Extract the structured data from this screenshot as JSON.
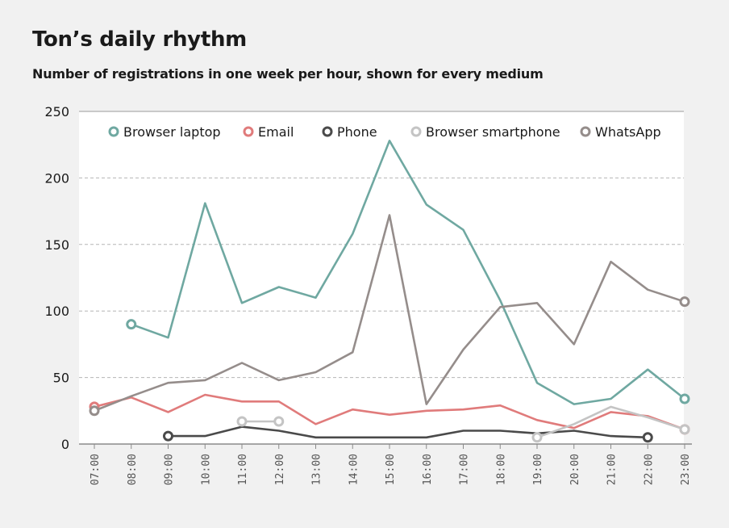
{
  "title": "Ton’s daily rhythm",
  "subtitle": "Number of registrations in one week per hour, shown for every medium",
  "chart_data": {
    "type": "line",
    "x": [
      "07:00",
      "08:00",
      "09:00",
      "10:00",
      "11:00",
      "12:00",
      "13:00",
      "14:00",
      "15:00",
      "16:00",
      "17:00",
      "18:00",
      "19:00",
      "20:00",
      "21:00",
      "22:00",
      "23:00"
    ],
    "ylim": [
      0,
      250
    ],
    "yticks": [
      0,
      50,
      100,
      150,
      200,
      250
    ],
    "grid": true,
    "legend_position": "top",
    "series": [
      {
        "name": "Browser laptop",
        "color": "#6fa8a1",
        "values": [
          null,
          90,
          80,
          181,
          106,
          118,
          110,
          158,
          228,
          180,
          161,
          108,
          46,
          30,
          34,
          56,
          34
        ]
      },
      {
        "name": "Email",
        "color": "#e07b7b",
        "values": [
          28,
          35,
          24,
          37,
          32,
          32,
          15,
          26,
          22,
          25,
          26,
          29,
          18,
          12,
          24,
          21,
          11
        ]
      },
      {
        "name": "Phone",
        "color": "#4a4a4a",
        "values": [
          null,
          null,
          6,
          6,
          13,
          10,
          5,
          5,
          5,
          5,
          10,
          10,
          8,
          10,
          6,
          5,
          null
        ]
      },
      {
        "name": "Browser smartphone",
        "color": "#c4c4c4",
        "values": [
          null,
          null,
          null,
          null,
          17,
          17,
          null,
          null,
          null,
          null,
          null,
          null,
          5,
          15,
          28,
          20,
          11
        ]
      },
      {
        "name": "WhatsApp",
        "color": "#958d8b",
        "values": [
          25,
          36,
          46,
          48,
          61,
          48,
          54,
          69,
          172,
          30,
          71,
          103,
          106,
          75,
          137,
          116,
          107
        ]
      }
    ]
  }
}
